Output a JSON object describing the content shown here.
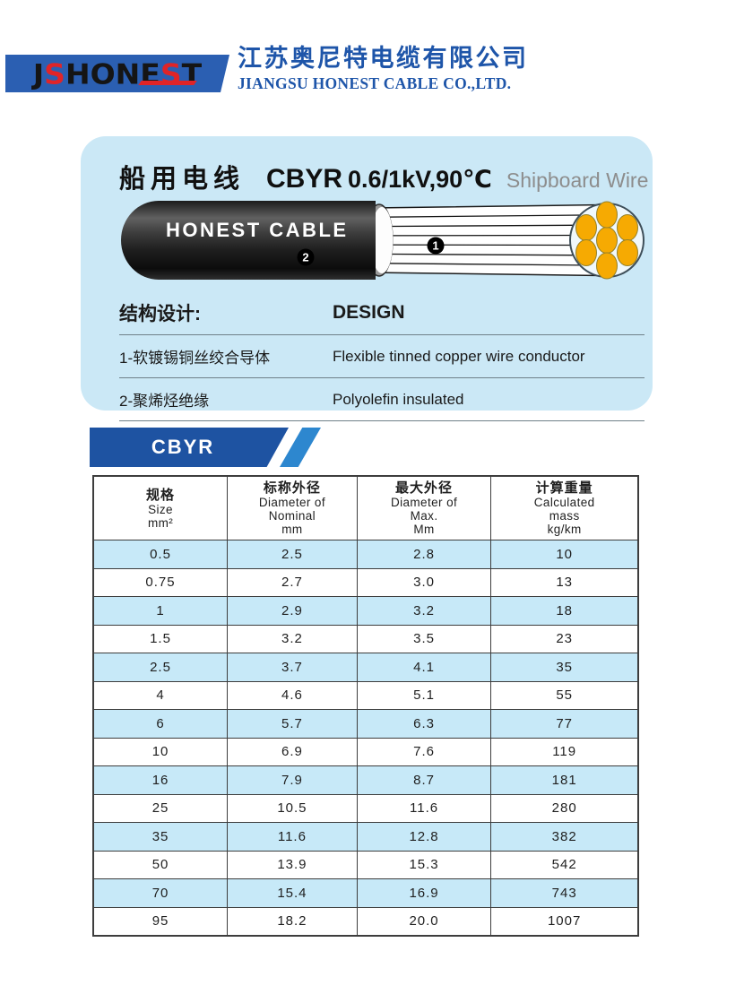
{
  "header": {
    "logo": {
      "letters": [
        {
          "ch": "J",
          "color": "#151515"
        },
        {
          "ch": "S",
          "color": "#e02428"
        },
        {
          "ch": "H",
          "color": "#151515"
        },
        {
          "ch": "O",
          "color": "#151515"
        },
        {
          "ch": "N",
          "color": "#151515"
        },
        {
          "ch": "E",
          "color": "#151515"
        },
        {
          "ch": "S",
          "color": "#e02428"
        },
        {
          "ch": "T",
          "color": "#151515"
        }
      ],
      "bar_color": "#2b5fb2"
    },
    "company_cn": "江苏奥尼特电缆有限公司",
    "company_en": "JIANGSU HONEST CABLE CO.,LTD."
  },
  "product_panel": {
    "title_cn": "船用电线",
    "model_code": "CBYR",
    "model_rating": "0.6/1kV,90℃",
    "subtitle_en": "Shipboard Wire",
    "cable": {
      "brand": "HONEST CABLE",
      "label_conductor": "1",
      "label_insulation": "2"
    },
    "design": {
      "heading_cn": "结构设计:",
      "heading_en": "DESIGN",
      "items": [
        {
          "cn": "1-软镀锡铜丝绞合导体",
          "en": "Flexible tinned copper wire conductor"
        },
        {
          "cn": "2-聚烯烃绝缘",
          "en": "Polyolefin insulated"
        }
      ]
    }
  },
  "series_tab": {
    "label": "CBYR"
  },
  "spec_table": {
    "columns": [
      {
        "lines": [
          "规格",
          "Size",
          "mm²"
        ]
      },
      {
        "lines": [
          "标称外径",
          "Diameter of",
          "Nominal",
          "mm"
        ]
      },
      {
        "lines": [
          "最大外径",
          "Diameter of",
          "Max.",
          "Mm"
        ]
      },
      {
        "lines": [
          "计算重量",
          "Calculated",
          "mass",
          "kg/km"
        ]
      }
    ],
    "rows": [
      [
        "0.5",
        "2.5",
        "2.8",
        "10"
      ],
      [
        "0.75",
        "2.7",
        "3.0",
        "13"
      ],
      [
        "1",
        "2.9",
        "3.2",
        "18"
      ],
      [
        "1.5",
        "3.2",
        "3.5",
        "23"
      ],
      [
        "2.5",
        "3.7",
        "4.1",
        "35"
      ],
      [
        "4",
        "4.6",
        "5.1",
        "55"
      ],
      [
        "6",
        "5.7",
        "6.3",
        "77"
      ],
      [
        "10",
        "6.9",
        "7.6",
        "119"
      ],
      [
        "16",
        "7.9",
        "8.7",
        "181"
      ],
      [
        "25",
        "10.5",
        "11.6",
        "280"
      ],
      [
        "35",
        "11.6",
        "12.8",
        "382"
      ],
      [
        "50",
        "13.9",
        "15.3",
        "542"
      ],
      [
        "70",
        "15.4",
        "16.9",
        "743"
      ],
      [
        "95",
        "18.2",
        "20.0",
        "1007"
      ]
    ]
  },
  "colors": {
    "logo_bar_blue": "#2b5fb2",
    "company_text_blue": "#1e55a9",
    "logo_red": "#e02428",
    "panel_bg": "#cbe8f6",
    "tab_dark_blue": "#1e53a2",
    "tab_light_blue": "#2d87cf",
    "table_alt_row": "#c7e9f8",
    "table_border": "#3d3d3d",
    "subtitle_gray": "#8d8d8d",
    "strand_orange": "#f6aa02"
  }
}
